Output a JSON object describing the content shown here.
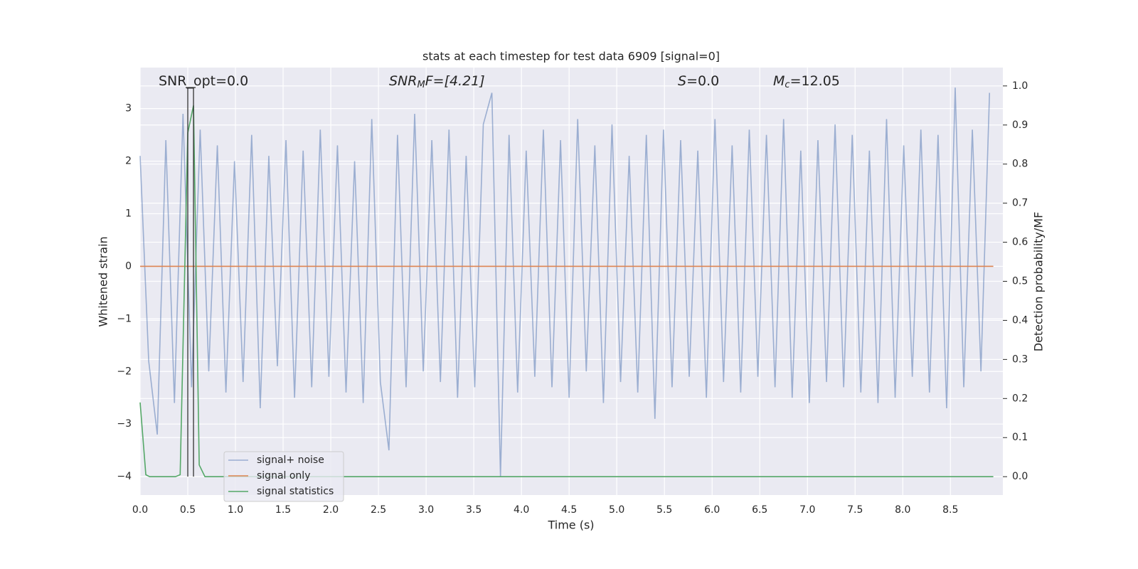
{
  "chart_data": {
    "type": "line",
    "title": "stats at each timestep for test data 6909 [signal=0]",
    "x_label": "Time (s)",
    "y_label": "Whitened strain",
    "y2_label": "Detection probability/MF",
    "annotations": [
      {
        "base": "SNR_opt=0.0"
      },
      {
        "base": "SNR",
        "sub": "M",
        "rest": "F=[4.21]"
      },
      {
        "base": "S",
        "rest": "=0.0"
      },
      {
        "base": "M",
        "sub": "c",
        "rest": "=12.05"
      }
    ],
    "xlim": [
      0,
      9.05
    ],
    "xticks": [
      {
        "value": 0,
        "label": "0.0"
      },
      0.5,
      {
        "value": 1,
        "label": "1.0"
      },
      1.5,
      {
        "value": 2,
        "label": "2.0"
      },
      2.5,
      {
        "value": 3,
        "label": "3.0"
      },
      3.5,
      {
        "value": 4,
        "label": "4.0"
      },
      4.5,
      {
        "value": 5,
        "label": "5.0"
      },
      5.5,
      {
        "value": 6,
        "label": "6.0"
      },
      6.5,
      {
        "value": 7,
        "label": "7.0"
      },
      7.5,
      {
        "value": 8,
        "label": "8.0"
      },
      8.5
    ],
    "ylim": [
      -4.35,
      3.78
    ],
    "yticks": [
      {
        "value": -4,
        "label": "−4"
      },
      {
        "value": -3,
        "label": "−3"
      },
      {
        "value": -2,
        "label": "−2"
      },
      {
        "value": -1,
        "label": "−1"
      },
      0,
      1,
      2,
      3
    ],
    "y2lim": [
      -0.047,
      1.047
    ],
    "y2ticks": [
      {
        "value": 0,
        "label": "0.0"
      },
      0.1,
      0.2,
      0.3,
      0.4,
      0.5,
      0.6,
      0.7,
      0.8,
      0.9,
      {
        "value": 1,
        "label": "1.0"
      }
    ],
    "grid": true,
    "legend": "lower left",
    "series": [
      {
        "name": "signal+ noise",
        "color": "#4c72b0",
        "alpha": 0.5,
        "x": [
          0,
          0.09,
          0.18,
          0.27,
          0.36,
          0.45,
          0.54,
          0.63,
          0.72,
          0.81,
          0.9,
          0.99,
          1.08,
          1.17,
          1.26,
          1.35,
          1.44,
          1.53,
          1.62,
          1.71,
          1.8,
          1.89,
          1.98,
          2.07,
          2.16,
          2.25,
          2.34,
          2.43,
          2.52,
          2.61,
          2.7,
          2.79,
          2.88,
          2.97,
          3.06,
          3.15,
          3.24,
          3.33,
          3.42,
          3.51,
          3.6,
          3.69,
          3.78,
          3.87,
          3.96,
          4.05,
          4.14,
          4.23,
          4.32,
          4.41,
          4.5,
          4.59,
          4.68,
          4.77,
          4.86,
          4.95,
          5.04,
          5.13,
          5.22,
          5.31,
          5.4,
          5.49,
          5.58,
          5.67,
          5.76,
          5.85,
          5.94,
          6.03,
          6.12,
          6.21,
          6.3,
          6.39,
          6.48,
          6.57,
          6.66,
          6.75,
          6.84,
          6.93,
          7.02,
          7.11,
          7.2,
          7.29,
          7.38,
          7.47,
          7.56,
          7.65,
          7.74,
          7.83,
          7.92,
          8.01,
          8.1,
          8.19,
          8.28,
          8.37,
          8.46,
          8.55,
          8.64,
          8.73,
          8.82,
          8.91
        ],
        "values": [
          2.1,
          -1.8,
          -3.2,
          2.4,
          -2.6,
          2.9,
          -2.3,
          2.6,
          -2.0,
          2.3,
          -2.4,
          2.0,
          -2.2,
          2.5,
          -2.7,
          2.1,
          -1.9,
          2.4,
          -2.5,
          2.2,
          -2.3,
          2.6,
          -2.1,
          2.3,
          -2.4,
          2.0,
          -2.6,
          2.8,
          -2.2,
          -3.5,
          2.5,
          -2.3,
          2.9,
          -2.0,
          2.4,
          -2.2,
          2.6,
          -2.5,
          2.1,
          -2.3,
          2.7,
          3.3,
          -4.0,
          2.5,
          -2.4,
          2.2,
          -2.1,
          2.6,
          -2.3,
          2.4,
          -2.5,
          2.8,
          -2.0,
          2.3,
          -2.6,
          2.7,
          -2.2,
          2.1,
          -2.4,
          2.5,
          -2.9,
          2.6,
          -2.3,
          2.4,
          -2.1,
          2.2,
          -2.5,
          2.8,
          -2.2,
          2.3,
          -2.4,
          2.6,
          -2.1,
          2.5,
          -2.3,
          2.8,
          -2.5,
          2.2,
          -2.6,
          2.4,
          -2.2,
          2.7,
          -2.3,
          2.5,
          -2.4,
          2.2,
          -2.6,
          2.8,
          -2.5,
          2.3,
          -2.1,
          2.6,
          -2.4,
          2.5,
          -2.7,
          3.4,
          -2.3,
          2.6,
          -2.0,
          3.3
        ]
      },
      {
        "name": "signal only",
        "color": "#dd8452",
        "x": [
          0,
          8.95
        ],
        "values": [
          0,
          0
        ]
      },
      {
        "name": "signal statistics",
        "color": "#55a868",
        "axis": "y2",
        "x": [
          0,
          0.06,
          0.1,
          0.37,
          0.42,
          0.5,
          0.56,
          0.62,
          0.68,
          8.95
        ],
        "values": [
          0.19,
          0.005,
          0,
          0,
          0.005,
          0.88,
          0.95,
          0.03,
          0,
          0
        ]
      }
    ],
    "vlines": {
      "x": [
        0.5,
        0.56
      ],
      "ymin": -4,
      "ymax": 3.4,
      "color": "#333333"
    }
  }
}
